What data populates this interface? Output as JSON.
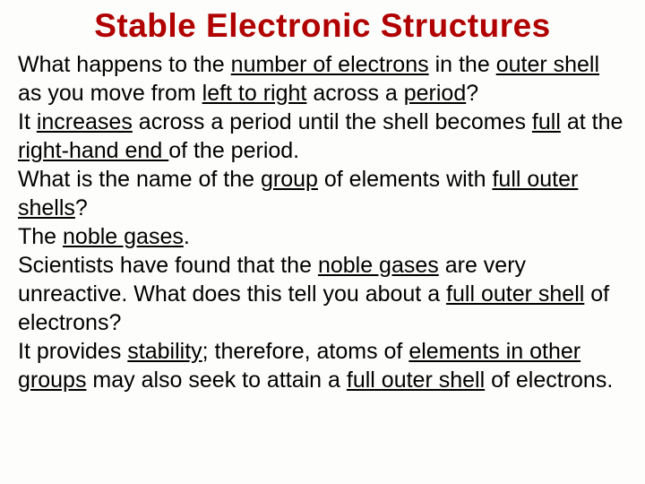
{
  "title": "Stable Electronic Structures",
  "title_color": "#b00000",
  "background_color": "#fdfdfb",
  "title_fontsize": 37,
  "body_fontsize": 25,
  "segments": [
    {
      "t": "What happens to the ",
      "u": false
    },
    {
      "t": "number of electrons",
      "u": true
    },
    {
      "t": " in the ",
      "u": false
    },
    {
      "t": "outer shell",
      "u": true
    },
    {
      "t": " as you move from ",
      "u": false
    },
    {
      "t": "left to right",
      "u": true
    },
    {
      "t": " across a ",
      "u": false
    },
    {
      "t": "period",
      "u": true
    },
    {
      "t": "?",
      "u": false
    },
    {
      "br": true
    },
    {
      "t": "It ",
      "u": false
    },
    {
      "t": "increases",
      "u": true
    },
    {
      "t": " across a period until the shell becomes ",
      "u": false
    },
    {
      "t": "full",
      "u": true
    },
    {
      "t": " at the ",
      "u": false
    },
    {
      "t": "right-hand end ",
      "u": true
    },
    {
      "t": "of the period.",
      "u": false
    },
    {
      "br": true
    },
    {
      "t": "What is the name of the ",
      "u": false
    },
    {
      "t": "group",
      "u": true
    },
    {
      "t": " of elements with ",
      "u": false
    },
    {
      "t": "full outer shells",
      "u": true
    },
    {
      "t": "?",
      "u": false
    },
    {
      "br": true
    },
    {
      "t": "The ",
      "u": false
    },
    {
      "t": "noble gases",
      "u": true
    },
    {
      "t": ".",
      "u": false
    },
    {
      "br": true
    },
    {
      "t": "Scientists have found that the ",
      "u": false
    },
    {
      "t": "noble gases",
      "u": true
    },
    {
      "t": " are very unreactive. What does this tell you about a ",
      "u": false
    },
    {
      "t": "full outer shell",
      "u": true
    },
    {
      "t": " of electrons?",
      "u": false
    },
    {
      "br": true
    },
    {
      "t": "It provides ",
      "u": false
    },
    {
      "t": "stability",
      "u": true
    },
    {
      "t": "; therefore, atoms of ",
      "u": false
    },
    {
      "t": "elements in other groups",
      "u": true
    },
    {
      "t": " may also seek to attain a ",
      "u": false
    },
    {
      "t": "full outer shell",
      "u": true
    },
    {
      "t": " of electrons.",
      "u": false
    }
  ]
}
